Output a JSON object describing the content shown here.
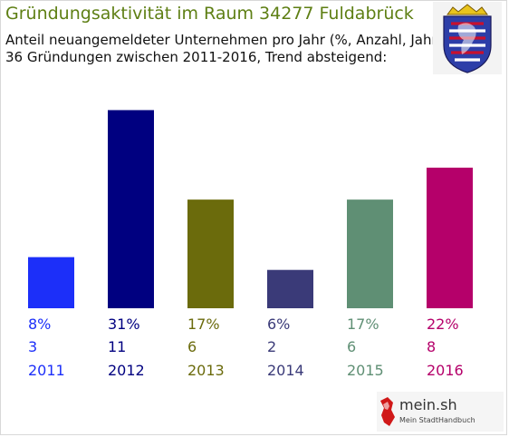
{
  "header": {
    "title": "Gründungsaktivität im Raum 34277 Fuldabrück",
    "subtitle_line1": "Anteil neuangemeldeter Unternehmen pro Jahr (%, Anzahl, Jahr)",
    "subtitle_line2": "36 Gründungen zwischen 2011-2016, Trend absteigend:"
  },
  "crest": {
    "icon": "hesse-coat-of-arms-icon"
  },
  "logo": {
    "name": "mein.sh",
    "tagline": "Mein StadtHandbuch",
    "icon": "germany-map-icon"
  },
  "chart_data": {
    "type": "bar",
    "title": "Gründungsaktivität im Raum 34277 Fuldabrück",
    "categories": [
      "2011",
      "2012",
      "2013",
      "2014",
      "2015",
      "2016"
    ],
    "series": [
      {
        "values": [
          8,
          31,
          17,
          6,
          17,
          22
        ]
      }
    ],
    "counts": [
      3,
      11,
      6,
      2,
      6,
      8
    ],
    "percent_labels": [
      "8%",
      "31%",
      "17%",
      "6%",
      "17%",
      "22%"
    ],
    "colors": [
      "#1c2ff9",
      "#000080",
      "#6b6b0c",
      "#3a3a78",
      "#5f8f74",
      "#b5006a"
    ],
    "grid": false,
    "legend": "none"
  }
}
